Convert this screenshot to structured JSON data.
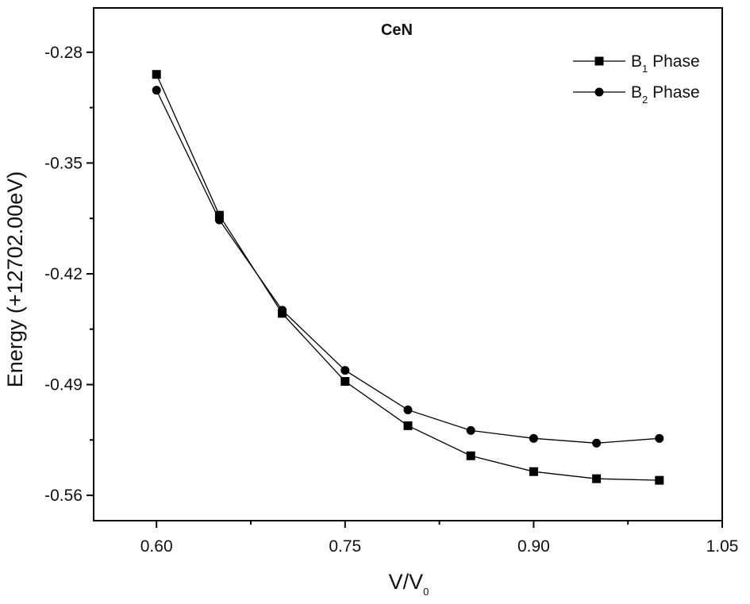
{
  "chart_data": {
    "type": "line",
    "title": "CeN",
    "xlabel": {
      "main": "V/V",
      "sub": "0"
    },
    "ylabel": "Energy (+12702.00eV)",
    "xlim": [
      0.55,
      1.05
    ],
    "ylim": [
      -0.576,
      -0.252
    ],
    "xticks": [
      0.6,
      0.75,
      0.9,
      1.05
    ],
    "xtick_labels": [
      "0.60",
      "0.75",
      "0.90",
      "1.05"
    ],
    "yticks": [
      -0.28,
      -0.35,
      -0.42,
      -0.49,
      -0.56
    ],
    "ytick_labels": [
      "-0.28",
      "-0.35",
      "-0.42",
      "-0.49",
      "-0.56"
    ],
    "grid": false,
    "legend_position": "top-right",
    "x": [
      0.6,
      0.65,
      0.7,
      0.75,
      0.8,
      0.85,
      0.9,
      0.95,
      1.0
    ],
    "series": [
      {
        "name": "B1 Phase",
        "label_main": "B",
        "label_sub": "1",
        "label_rest": " Phase",
        "marker": "square",
        "color": "#000000",
        "values": [
          -0.294,
          -0.383,
          -0.445,
          -0.488,
          -0.516,
          -0.535,
          -0.545,
          -0.5495,
          -0.5505
        ]
      },
      {
        "name": "B2 Phase",
        "label_main": "B",
        "label_sub": "2",
        "label_rest": " Phase",
        "marker": "circle",
        "color": "#000000",
        "values": [
          -0.304,
          -0.386,
          -0.443,
          -0.481,
          -0.506,
          -0.519,
          -0.524,
          -0.527,
          -0.524
        ]
      }
    ]
  }
}
